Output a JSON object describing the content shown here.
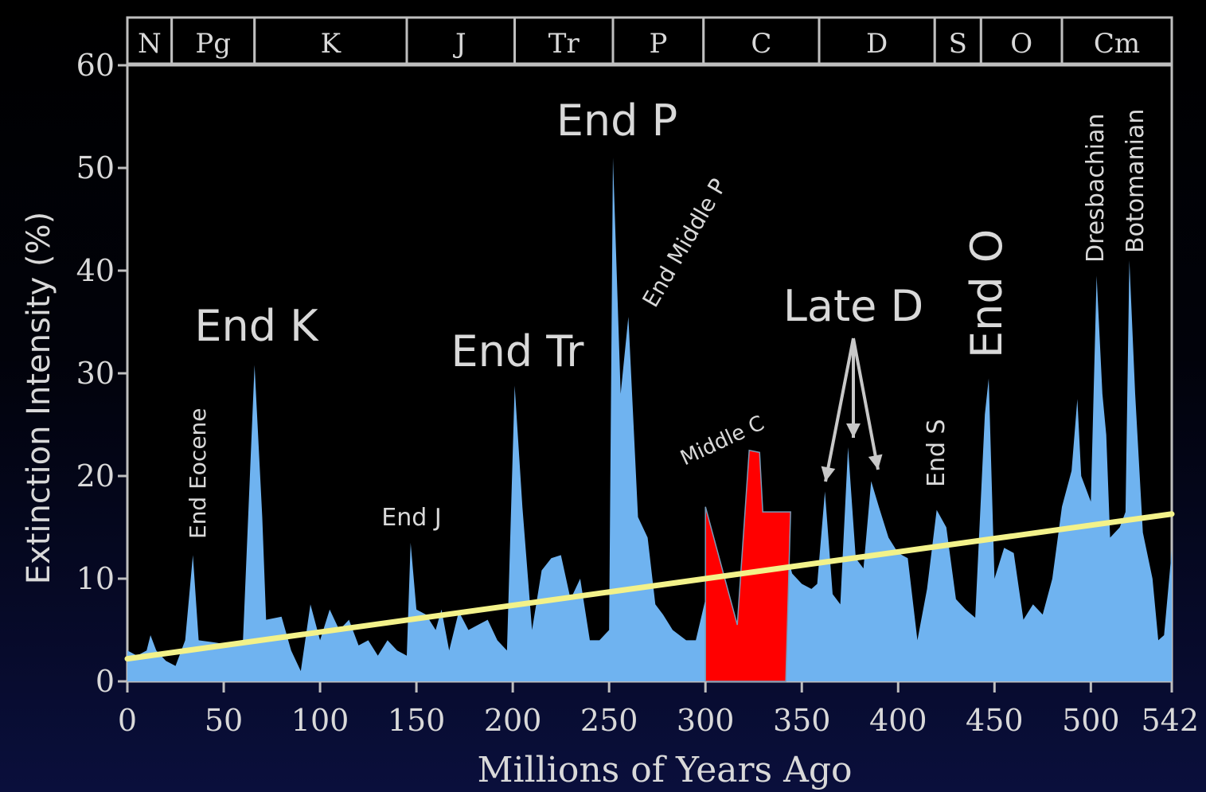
{
  "chart_data": {
    "type": "area",
    "xlabel": "Millions of Years Ago",
    "ylabel": "Extinction Intensity (%)",
    "xlim": [
      0,
      542
    ],
    "ylim": [
      0,
      60
    ],
    "x_ticks": [
      0,
      50,
      100,
      150,
      200,
      250,
      300,
      350,
      400,
      450,
      500,
      542
    ],
    "y_ticks": [
      0,
      10,
      20,
      30,
      40,
      50,
      60
    ],
    "grid": false,
    "colors": {
      "area": "#6fb3f0",
      "trend": "#f3f28a",
      "marker": "#ff0000",
      "text": "#d9d9d9",
      "background": "#000000"
    },
    "periods": [
      {
        "label": "N",
        "start": 0,
        "end": 23
      },
      {
        "label": "Pg",
        "start": 23,
        "end": 66
      },
      {
        "label": "K",
        "start": 66,
        "end": 145
      },
      {
        "label": "J",
        "start": 145,
        "end": 201
      },
      {
        "label": "Tr",
        "start": 201,
        "end": 252
      },
      {
        "label": "P",
        "start": 252,
        "end": 299
      },
      {
        "label": "C",
        "start": 299,
        "end": 359
      },
      {
        "label": "D",
        "start": 359,
        "end": 419
      },
      {
        "label": "S",
        "start": 419,
        "end": 443
      },
      {
        "label": "O",
        "start": 443,
        "end": 485
      },
      {
        "label": "Cm",
        "start": 485,
        "end": 542
      }
    ],
    "series": [
      {
        "values": [
          [
            0,
            3
          ],
          [
            5,
            2.5
          ],
          [
            10,
            3
          ],
          [
            12,
            4.5
          ],
          [
            15,
            3
          ],
          [
            20,
            2
          ],
          [
            25,
            1.5
          ],
          [
            30,
            4
          ],
          [
            34,
            12.3
          ],
          [
            37,
            4
          ],
          [
            45,
            3.8
          ],
          [
            55,
            3.5
          ],
          [
            60,
            4
          ],
          [
            66,
            30.8
          ],
          [
            70,
            16
          ],
          [
            72,
            6
          ],
          [
            80,
            6.3
          ],
          [
            85,
            3
          ],
          [
            90,
            1
          ],
          [
            95,
            7.5
          ],
          [
            100,
            4
          ],
          [
            105,
            7
          ],
          [
            110,
            5
          ],
          [
            115,
            6
          ],
          [
            120,
            3.5
          ],
          [
            125,
            4
          ],
          [
            130,
            2.5
          ],
          [
            135,
            4
          ],
          [
            140,
            3
          ],
          [
            145,
            2.5
          ],
          [
            147,
            13.5
          ],
          [
            150,
            7
          ],
          [
            155,
            6.5
          ],
          [
            160,
            5
          ],
          [
            163,
            7
          ],
          [
            167,
            3
          ],
          [
            172,
            6.8
          ],
          [
            177,
            5
          ],
          [
            182,
            5.5
          ],
          [
            187,
            6
          ],
          [
            192,
            4
          ],
          [
            197,
            3
          ],
          [
            201,
            28.8
          ],
          [
            205,
            17
          ],
          [
            210,
            5
          ],
          [
            215,
            10.8
          ],
          [
            220,
            12
          ],
          [
            225,
            12.3
          ],
          [
            230,
            8
          ],
          [
            235,
            10
          ],
          [
            240,
            4
          ],
          [
            245,
            4
          ],
          [
            250,
            5
          ],
          [
            252,
            51
          ],
          [
            256,
            28
          ],
          [
            260,
            35.5
          ],
          [
            265,
            16
          ],
          [
            270,
            14
          ],
          [
            274,
            7.5
          ],
          [
            278,
            6.5
          ],
          [
            283,
            5
          ],
          [
            290,
            4
          ],
          [
            295,
            4
          ],
          [
            300,
            8
          ],
          [
            304,
            14
          ],
          [
            308,
            9
          ],
          [
            312,
            5
          ],
          [
            316,
            5
          ],
          [
            320,
            10
          ],
          [
            325,
            8
          ],
          [
            330,
            16
          ],
          [
            340,
            14
          ],
          [
            345,
            10.5
          ],
          [
            350,
            9.5
          ],
          [
            355,
            9
          ],
          [
            358,
            9.5
          ],
          [
            362,
            18.5
          ],
          [
            366,
            8.5
          ],
          [
            370,
            7.5
          ],
          [
            374,
            22.8
          ],
          [
            378,
            12
          ],
          [
            382,
            11
          ],
          [
            386,
            19.5
          ],
          [
            390,
            17
          ],
          [
            395,
            14
          ],
          [
            400,
            12.5
          ],
          [
            405,
            12
          ],
          [
            410,
            4
          ],
          [
            415,
            9
          ],
          [
            420,
            16.7
          ],
          [
            425,
            15
          ],
          [
            430,
            8
          ],
          [
            435,
            7
          ],
          [
            440,
            6.2
          ],
          [
            445,
            26
          ],
          [
            447,
            29.5
          ],
          [
            450,
            10
          ],
          [
            455,
            13
          ],
          [
            460,
            12.5
          ],
          [
            465,
            6
          ],
          [
            470,
            7.5
          ],
          [
            475,
            6.5
          ],
          [
            480,
            10
          ],
          [
            485,
            17
          ],
          [
            490,
            20.5
          ],
          [
            493,
            27.5
          ],
          [
            495,
            20
          ],
          [
            500,
            17.5
          ],
          [
            503,
            39.5
          ],
          [
            506,
            28
          ],
          [
            508,
            24
          ],
          [
            510,
            14
          ],
          [
            515,
            15
          ],
          [
            518,
            16.5
          ],
          [
            520,
            41
          ],
          [
            523,
            28
          ],
          [
            527,
            14.5
          ],
          [
            532,
            10
          ],
          [
            535,
            4
          ],
          [
            538,
            4.5
          ],
          [
            542,
            12.8
          ]
        ]
      }
    ],
    "trend_line": {
      "x": [
        0,
        542
      ],
      "y": [
        2.2,
        16.3
      ]
    },
    "annotations": [
      {
        "text": "End K",
        "x": 66,
        "y": 34
      },
      {
        "text": "End Tr",
        "x": 201,
        "y": 31
      },
      {
        "text": "End P",
        "x": 252,
        "y": 53
      },
      {
        "text": "End J",
        "x": 147,
        "y": 15
      },
      {
        "text": "End Eocene",
        "x": 34,
        "y": 14
      },
      {
        "text": "End Middle P",
        "x": 260,
        "y": 37
      },
      {
        "text": "Middle C",
        "x": 310,
        "y": 21
      },
      {
        "text": "Late D",
        "x": 374,
        "y": 36
      },
      {
        "text": "End S",
        "x": 420,
        "y": 19
      },
      {
        "text": "End O",
        "x": 447,
        "y": 32
      },
      {
        "text": "Dresbachian",
        "x": 503,
        "y": 41
      },
      {
        "text": "Botomanian",
        "x": 520,
        "y": 41
      }
    ],
    "highlight_region": {
      "x_start": 300,
      "x_end": 345
    }
  }
}
